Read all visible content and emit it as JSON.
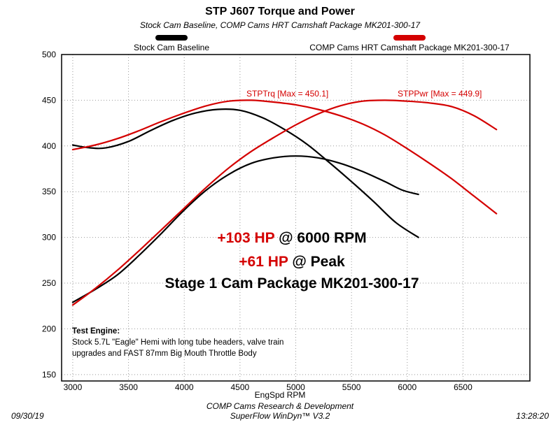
{
  "header": {
    "title": "STP J607 Torque and Power",
    "subtitle": "Stock Cam Baseline, COMP Cams HRT Camshaft Package MK201-300-17"
  },
  "legend": [
    {
      "label": "Stock Cam Baseline",
      "color": "#000000"
    },
    {
      "label": "COMP Cams HRT Camshaft Package MK201-300-17",
      "color": "#d40000"
    }
  ],
  "chart_data": {
    "type": "line",
    "title": "STP J607 Torque and Power",
    "xlabel": "EngSpd RPM",
    "ylabel": "",
    "xlim": [
      2900,
      7100
    ],
    "ylim": [
      143,
      500
    ],
    "x_ticks": [
      3000,
      3500,
      4000,
      4500,
      5000,
      5500,
      6000,
      6500
    ],
    "y_ticks": [
      150,
      200,
      250,
      300,
      350,
      400,
      450,
      500
    ],
    "grid": true,
    "legend_position": "top",
    "series": [
      {
        "key": "stock_trq",
        "name": "STPTrq - Stock Cam Baseline (lb-ft)",
        "color": "#000000",
        "points": [
          [
            3000,
            401
          ],
          [
            3150,
            398
          ],
          [
            3300,
            398
          ],
          [
            3500,
            405
          ],
          [
            3700,
            417
          ],
          [
            3900,
            428
          ],
          [
            4100,
            436
          ],
          [
            4300,
            440
          ],
          [
            4500,
            439
          ],
          [
            4700,
            431
          ],
          [
            4900,
            418
          ],
          [
            5100,
            402
          ],
          [
            5300,
            382
          ],
          [
            5500,
            361
          ],
          [
            5700,
            339
          ],
          [
            5900,
            316
          ],
          [
            6100,
            300
          ]
        ]
      },
      {
        "key": "stock_pwr",
        "name": "STPPwr - Stock Cam Baseline (hp)",
        "color": "#000000",
        "points": [
          [
            3000,
            229
          ],
          [
            3200,
            243
          ],
          [
            3400,
            259
          ],
          [
            3600,
            281
          ],
          [
            3800,
            305
          ],
          [
            4000,
            330
          ],
          [
            4200,
            352
          ],
          [
            4400,
            369
          ],
          [
            4600,
            381
          ],
          [
            4800,
            387
          ],
          [
            5000,
            389
          ],
          [
            5200,
            387
          ],
          [
            5400,
            381
          ],
          [
            5600,
            372
          ],
          [
            5800,
            361
          ],
          [
            5950,
            352
          ],
          [
            6100,
            347
          ]
        ]
      },
      {
        "key": "comp_trq",
        "name": "STPTrq - COMP Cams HRT Camshaft Package (lb-ft)",
        "color": "#d40000",
        "max": 450.1,
        "points": [
          [
            3000,
            396
          ],
          [
            3200,
            401
          ],
          [
            3400,
            408
          ],
          [
            3600,
            417
          ],
          [
            3800,
            427
          ],
          [
            4000,
            436
          ],
          [
            4200,
            444
          ],
          [
            4400,
            449
          ],
          [
            4600,
            450
          ],
          [
            4800,
            448
          ],
          [
            5000,
            445
          ],
          [
            5200,
            440
          ],
          [
            5400,
            433
          ],
          [
            5600,
            424
          ],
          [
            5800,
            412
          ],
          [
            6000,
            397
          ],
          [
            6200,
            381
          ],
          [
            6400,
            364
          ],
          [
            6600,
            345
          ],
          [
            6800,
            326
          ]
        ]
      },
      {
        "key": "comp_pwr",
        "name": "STPPwr - COMP Cams HRT Camshaft Package (hp)",
        "color": "#d40000",
        "max": 449.9,
        "points": [
          [
            3000,
            226
          ],
          [
            3200,
            244
          ],
          [
            3400,
            264
          ],
          [
            3600,
            286
          ],
          [
            3800,
            309
          ],
          [
            4000,
            332
          ],
          [
            4200,
            355
          ],
          [
            4400,
            376
          ],
          [
            4600,
            394
          ],
          [
            4800,
            409
          ],
          [
            5000,
            423
          ],
          [
            5200,
            435
          ],
          [
            5400,
            444
          ],
          [
            5600,
            449
          ],
          [
            5800,
            450
          ],
          [
            6000,
            449
          ],
          [
            6200,
            447
          ],
          [
            6400,
            443
          ],
          [
            6600,
            433
          ],
          [
            6800,
            418
          ]
        ]
      }
    ]
  },
  "annotations": {
    "trq_max": "STPTrq [Max = 450.1]",
    "pwr_max": "STPPwr [Max = 449.9]",
    "gain1_value": "+103 HP",
    "gain1_suffix": " @ 6000 RPM",
    "gain2_value": "+61 HP",
    "gain2_suffix": " @ Peak",
    "stage": "Stage 1 Cam Package MK201-300-17"
  },
  "test_engine": {
    "heading": "Test Engine:",
    "line1": "Stock 5.7L \"Eagle\" Hemi with long tube headers, valve train",
    "line2": "upgrades and FAST 87mm Big Mouth Throttle Body"
  },
  "footer": {
    "date": "09/30/19",
    "center_line1": "COMP Cams Research & Development",
    "center_line2": "SuperFlow WinDyn™ V3.2",
    "time": "13:28:20"
  }
}
